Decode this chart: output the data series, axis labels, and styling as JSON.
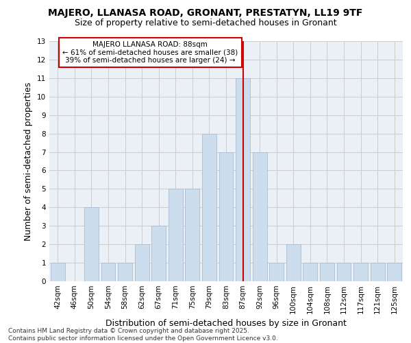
{
  "title": "MAJERO, LLANASA ROAD, GRONANT, PRESTATYN, LL19 9TF",
  "subtitle": "Size of property relative to semi-detached houses in Gronant",
  "xlabel": "Distribution of semi-detached houses by size in Gronant",
  "ylabel": "Number of semi-detached properties",
  "categories": [
    "42sqm",
    "46sqm",
    "50sqm",
    "54sqm",
    "58sqm",
    "62sqm",
    "67sqm",
    "71sqm",
    "75sqm",
    "79sqm",
    "83sqm",
    "87sqm",
    "92sqm",
    "96sqm",
    "100sqm",
    "104sqm",
    "108sqm",
    "112sqm",
    "117sqm",
    "121sqm",
    "125sqm"
  ],
  "values": [
    1,
    0,
    4,
    1,
    1,
    2,
    3,
    5,
    5,
    8,
    7,
    11,
    7,
    1,
    2,
    1,
    1,
    1,
    1,
    1,
    1
  ],
  "bar_color": "#ccdded",
  "bar_edge_color": "#aabbd0",
  "vline_x_index": 11,
  "vline_color": "#cc0000",
  "annotation_text": "MAJERO LLANASA ROAD: 88sqm\n← 61% of semi-detached houses are smaller (38)\n39% of semi-detached houses are larger (24) →",
  "annotation_box_color": "#cc0000",
  "annotation_bg": "#ffffff",
  "footnote": "Contains HM Land Registry data © Crown copyright and database right 2025.\nContains public sector information licensed under the Open Government Licence v3.0.",
  "ylim": [
    0,
    13
  ],
  "yticks": [
    0,
    1,
    2,
    3,
    4,
    5,
    6,
    7,
    8,
    9,
    10,
    11,
    12,
    13
  ],
  "grid_color": "#cccccc",
  "bg_color": "#eaf0f6",
  "title_fontsize": 10,
  "subtitle_fontsize": 9,
  "axis_label_fontsize": 9,
  "tick_fontsize": 7.5,
  "annotation_fontsize": 7.5,
  "footnote_fontsize": 6.5
}
